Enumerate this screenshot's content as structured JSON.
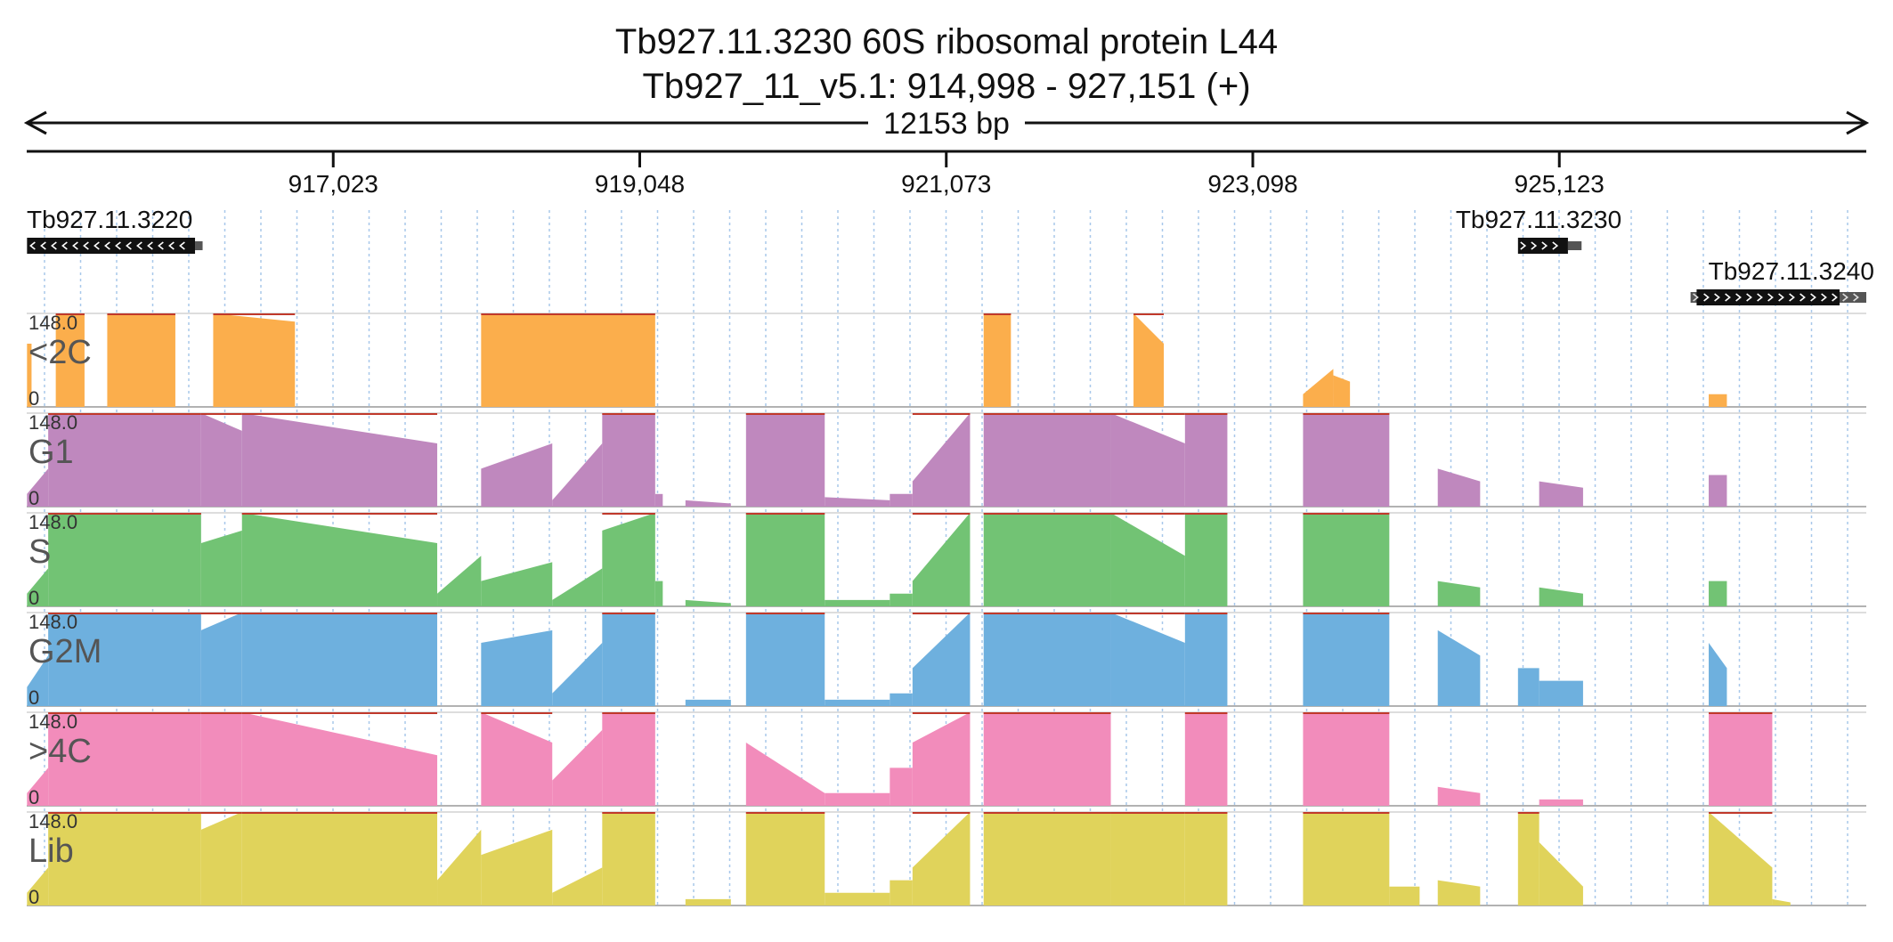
{
  "title": {
    "line1": "Tb927.11.3230  60S ribosomal protein L44",
    "line2": "Tb927_11_v5.1: 914,998 - 927,151 (+)",
    "span": "12153 bp"
  },
  "chart_data": {
    "type": "area",
    "x_range": [
      914998,
      927151
    ],
    "x_ticks": [
      917023,
      919048,
      921073,
      923098,
      925123
    ],
    "x_tick_labels": [
      "917,023",
      "919,048",
      "921,073",
      "923,098",
      "925,123"
    ],
    "y_range": [
      0,
      148.0
    ],
    "y_max_label": "148.0",
    "y_min_label": "0",
    "grid": true,
    "genes": [
      {
        "name": "Tb927.11.3220",
        "start": 915000,
        "end": 916110,
        "strand": "-",
        "utr_end": 916160
      },
      {
        "name": "Tb927.11.3230",
        "start": 924850,
        "end": 925180,
        "strand": "+",
        "utr_end": 925270
      },
      {
        "name": "Tb927.11.3240",
        "start": 925990,
        "end": 927150,
        "strand": "+",
        "cds_start": 926030,
        "cds_end": 927640
      }
    ],
    "tracks": [
      {
        "name": "<2C",
        "color": "#fbae4c",
        "segments": [
          [
            915000,
            915030,
            100,
            100
          ],
          [
            915190,
            915380,
            148,
            148
          ],
          [
            915530,
            915980,
            148,
            148
          ],
          [
            916230,
            916770,
            148,
            135
          ],
          [
            918000,
            919150,
            148,
            148
          ],
          [
            921320,
            921500,
            148,
            148
          ],
          [
            922310,
            922510,
            148,
            100
          ],
          [
            923430,
            923630,
            20,
            60
          ],
          [
            923630,
            923740,
            50,
            40
          ],
          [
            926110,
            926230,
            20,
            20
          ]
        ]
      },
      {
        "name": "G1",
        "color": "#bf88be",
        "segments": [
          [
            915000,
            915140,
            20,
            60
          ],
          [
            915140,
            916150,
            148,
            148
          ],
          [
            916150,
            916420,
            148,
            120
          ],
          [
            916420,
            917710,
            148,
            100
          ],
          [
            918000,
            918470,
            60,
            100
          ],
          [
            918470,
            918800,
            10,
            100
          ],
          [
            918800,
            919150,
            148,
            148
          ],
          [
            919150,
            919200,
            20,
            20
          ],
          [
            919350,
            919650,
            10,
            5
          ],
          [
            919750,
            920270,
            148,
            148
          ],
          [
            920270,
            920700,
            15,
            10
          ],
          [
            920700,
            920850,
            20,
            20
          ],
          [
            920850,
            921230,
            40,
            148
          ],
          [
            921320,
            922160,
            148,
            148
          ],
          [
            922160,
            922650,
            148,
            100
          ],
          [
            922650,
            922930,
            148,
            148
          ],
          [
            923430,
            924000,
            148,
            148
          ],
          [
            924320,
            924600,
            60,
            40
          ],
          [
            924990,
            925280,
            40,
            30
          ],
          [
            926110,
            926230,
            50,
            50
          ]
        ]
      },
      {
        "name": "S",
        "color": "#72c374",
        "segments": [
          [
            915000,
            915140,
            20,
            60
          ],
          [
            915140,
            916150,
            148,
            148
          ],
          [
            916150,
            916420,
            100,
            120
          ],
          [
            916420,
            917710,
            148,
            100
          ],
          [
            917710,
            918000,
            20,
            80
          ],
          [
            918000,
            918470,
            40,
            70
          ],
          [
            918470,
            918800,
            10,
            60
          ],
          [
            918800,
            919150,
            120,
            148
          ],
          [
            919150,
            919200,
            40,
            40
          ],
          [
            919350,
            919650,
            10,
            5
          ],
          [
            919750,
            920270,
            148,
            148
          ],
          [
            920270,
            920700,
            10,
            10
          ],
          [
            920700,
            920850,
            20,
            20
          ],
          [
            920850,
            921230,
            40,
            148
          ],
          [
            921320,
            922160,
            148,
            148
          ],
          [
            922160,
            922650,
            148,
            80
          ],
          [
            922650,
            922930,
            148,
            148
          ],
          [
            923430,
            924000,
            148,
            148
          ],
          [
            924320,
            924600,
            40,
            30
          ],
          [
            924990,
            925280,
            30,
            20
          ],
          [
            926110,
            926230,
            40,
            40
          ]
        ]
      },
      {
        "name": "G2M",
        "color": "#6eb0de",
        "segments": [
          [
            915000,
            915140,
            30,
            80
          ],
          [
            915140,
            916150,
            148,
            148
          ],
          [
            916150,
            916420,
            120,
            148
          ],
          [
            916420,
            917710,
            148,
            148
          ],
          [
            918000,
            918470,
            100,
            120
          ],
          [
            918470,
            918800,
            20,
            100
          ],
          [
            918800,
            919150,
            148,
            148
          ],
          [
            919350,
            919650,
            10,
            10
          ],
          [
            919750,
            920270,
            148,
            148
          ],
          [
            920270,
            920700,
            10,
            10
          ],
          [
            920700,
            920850,
            20,
            20
          ],
          [
            920850,
            921230,
            60,
            148
          ],
          [
            921320,
            922160,
            148,
            148
          ],
          [
            922160,
            922650,
            148,
            100
          ],
          [
            922650,
            922930,
            148,
            148
          ],
          [
            923430,
            924000,
            148,
            148
          ],
          [
            924320,
            924600,
            120,
            80
          ],
          [
            924850,
            924990,
            60,
            60
          ],
          [
            924990,
            925280,
            40,
            40
          ],
          [
            926110,
            926230,
            100,
            60
          ]
        ]
      },
      {
        "name": ">4C",
        "color": "#f28cbb",
        "segments": [
          [
            915000,
            915140,
            20,
            60
          ],
          [
            915140,
            916150,
            148,
            148
          ],
          [
            916150,
            916420,
            148,
            148
          ],
          [
            916420,
            917710,
            148,
            80
          ],
          [
            918000,
            918470,
            148,
            100
          ],
          [
            918470,
            918800,
            40,
            120
          ],
          [
            918800,
            919150,
            148,
            148
          ],
          [
            919750,
            920270,
            100,
            20
          ],
          [
            920270,
            920700,
            20,
            20
          ],
          [
            920700,
            920850,
            60,
            60
          ],
          [
            920850,
            921230,
            100,
            148
          ],
          [
            921320,
            922160,
            148,
            148
          ],
          [
            922650,
            922930,
            148,
            148
          ],
          [
            923430,
            924000,
            148,
            148
          ],
          [
            924320,
            924600,
            30,
            20
          ],
          [
            924990,
            925280,
            10,
            10
          ],
          [
            926110,
            926530,
            148,
            148
          ]
        ]
      },
      {
        "name": "Lib",
        "color": "#e0d35b",
        "segments": [
          [
            915000,
            915140,
            20,
            60
          ],
          [
            915140,
            916150,
            148,
            148
          ],
          [
            916150,
            916420,
            120,
            148
          ],
          [
            916420,
            917710,
            148,
            148
          ],
          [
            917710,
            918000,
            40,
            120
          ],
          [
            918000,
            918470,
            80,
            120
          ],
          [
            918470,
            918800,
            20,
            60
          ],
          [
            918800,
            919150,
            148,
            148
          ],
          [
            919350,
            919650,
            10,
            10
          ],
          [
            919750,
            920270,
            148,
            148
          ],
          [
            920270,
            920700,
            20,
            20
          ],
          [
            920700,
            920850,
            40,
            40
          ],
          [
            920850,
            921230,
            60,
            148
          ],
          [
            921320,
            922160,
            148,
            148
          ],
          [
            922160,
            922650,
            148,
            148
          ],
          [
            922650,
            922930,
            148,
            148
          ],
          [
            923430,
            924000,
            148,
            148
          ],
          [
            924000,
            924200,
            30,
            30
          ],
          [
            924320,
            924600,
            40,
            30
          ],
          [
            924850,
            924990,
            148,
            148
          ],
          [
            924990,
            925280,
            100,
            30
          ],
          [
            926110,
            926530,
            148,
            60
          ],
          [
            926530,
            926650,
            10,
            5
          ]
        ]
      }
    ]
  }
}
